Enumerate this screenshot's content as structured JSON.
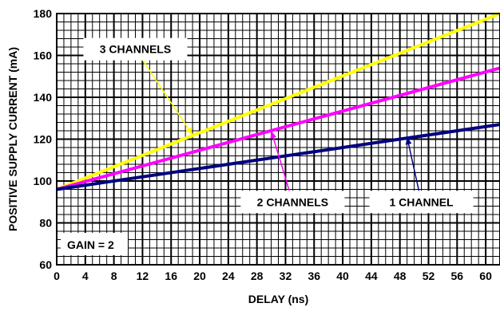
{
  "chart_data": {
    "type": "line",
    "title": "",
    "xlabel": "DELAY (ns)",
    "ylabel": "POSITIVE SUPPLY CURRENT (mA)",
    "xlim": [
      0,
      62
    ],
    "ylim": [
      60,
      180
    ],
    "xticks": [
      0,
      4,
      8,
      12,
      16,
      20,
      24,
      28,
      32,
      36,
      40,
      44,
      48,
      52,
      56,
      60
    ],
    "yticks": [
      60,
      80,
      100,
      120,
      140,
      160,
      180
    ],
    "xtick_labels": [
      "0",
      "4",
      "8",
      "12",
      "16",
      "20",
      "24",
      "28",
      "32",
      "36",
      "40",
      "44",
      "48",
      "52",
      "56",
      "60"
    ],
    "ytick_labels": [
      "60",
      "80",
      "100",
      "120",
      "140",
      "160",
      "180"
    ],
    "grid": true,
    "series": [
      {
        "name": "3 CHANNELS",
        "color": "#ffff00",
        "x": [
          0,
          62
        ],
        "y": [
          96,
          180
        ]
      },
      {
        "name": "2 CHANNELS",
        "color": "#ff00ff",
        "x": [
          0,
          62
        ],
        "y": [
          96,
          154
        ]
      },
      {
        "name": "1 CHANNEL",
        "color": "#000080",
        "x": [
          0,
          62
        ],
        "y": [
          96,
          127
        ]
      }
    ],
    "annotations": [
      {
        "text": "3 CHANNELS",
        "series": 0,
        "label_x": 11,
        "label_y": 163,
        "point_x": 19,
        "point_y": 122
      },
      {
        "text": "2 CHANNELS",
        "series": 1,
        "label_x": 33,
        "label_y": 90,
        "point_x": 30,
        "point_y": 124
      },
      {
        "text": "1 CHANNEL",
        "series": 2,
        "label_x": 51,
        "label_y": 90,
        "point_x": 49,
        "point_y": 121
      },
      {
        "text": "GAIN = 2"
      }
    ]
  }
}
